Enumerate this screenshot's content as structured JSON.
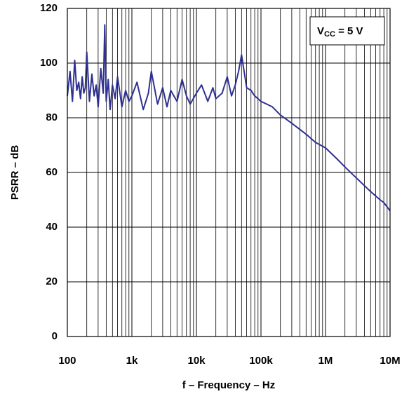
{
  "chart_data": {
    "type": "line",
    "log_x": true,
    "grid": true,
    "minor_grid": true,
    "color": "#2e3192",
    "xlabel": "f – Frequency – Hz",
    "ylabel": "PSRR – dB",
    "annotation": {
      "main": "V",
      "sub": "CC",
      "rest": " = 5 V"
    },
    "xlim": [
      100,
      10000000
    ],
    "xticks": [
      100,
      {
        "value": 1000,
        "label": "1k"
      },
      {
        "value": 10000,
        "label": "10k"
      },
      {
        "value": 100000,
        "label": "100k"
      },
      {
        "value": 1000000,
        "label": "1M"
      },
      {
        "value": 10000000,
        "label": "10M"
      }
    ],
    "ylim": [
      0,
      120
    ],
    "yticks": [
      0,
      20,
      40,
      60,
      80,
      100,
      120
    ],
    "x": [
      100,
      110,
      120,
      130,
      140,
      150,
      160,
      170,
      180,
      190,
      200,
      220,
      240,
      260,
      280,
      300,
      330,
      360,
      380,
      400,
      430,
      460,
      500,
      550,
      600,
      700,
      800,
      900,
      1000,
      1200,
      1500,
      1800,
      2000,
      2500,
      3000,
      3500,
      4000,
      5000,
      6000,
      7000,
      8000,
      10000,
      12000,
      15000,
      18000,
      20000,
      25000,
      30000,
      35000,
      40000,
      45000,
      50000,
      60000,
      70000,
      80000,
      100000,
      150000,
      200000,
      300000,
      500000,
      700000,
      1000000,
      1500000,
      2000000,
      3000000,
      5000000,
      7000000,
      8000000,
      10000000
    ],
    "values": [
      88,
      97,
      86,
      101,
      90,
      93,
      87,
      95,
      89,
      91,
      104,
      86,
      96,
      88,
      92,
      84,
      98,
      89,
      114,
      86,
      94,
      83,
      92,
      87,
      95,
      84,
      90,
      86,
      88,
      93,
      83,
      89,
      97,
      85,
      91,
      84,
      90,
      86,
      94,
      88,
      85,
      89,
      92,
      86,
      91,
      87,
      89,
      95,
      88,
      92,
      97,
      103,
      91,
      90,
      88,
      86,
      84,
      81,
      78,
      74,
      71,
      69,
      65,
      62,
      58,
      53,
      50,
      49,
      46
    ]
  }
}
